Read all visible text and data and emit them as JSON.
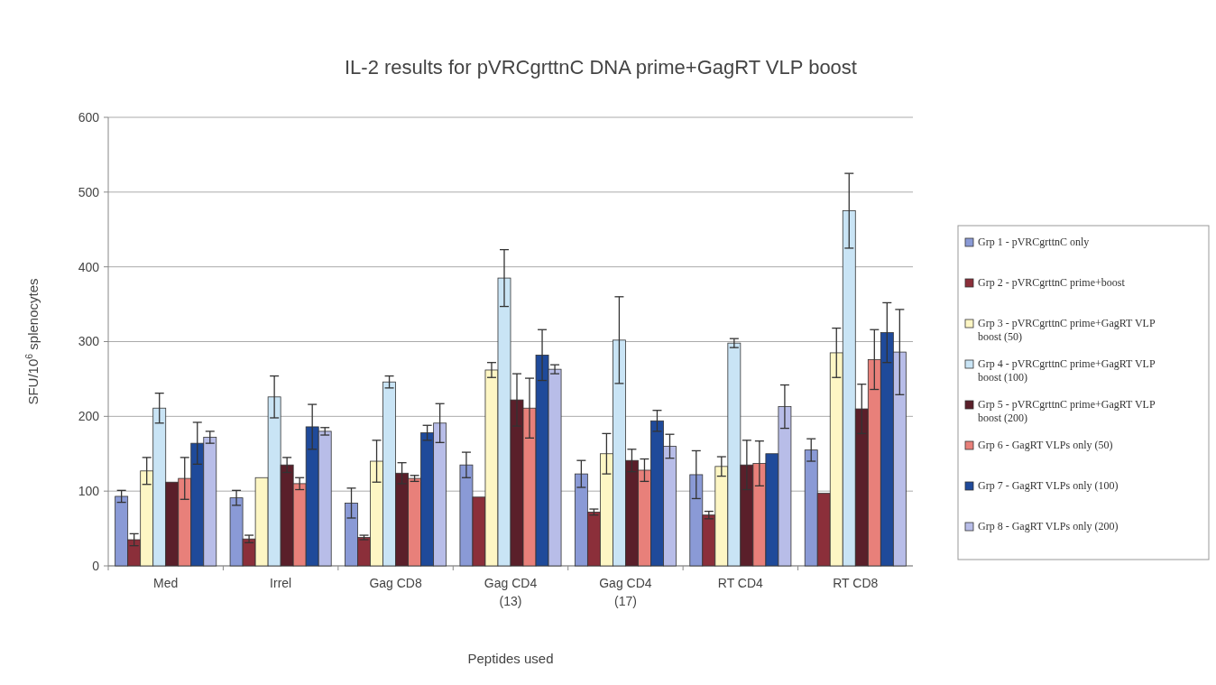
{
  "chart_data": {
    "type": "bar",
    "title": "IL-2 results for pVRCgrttnC DNA prime+GagRT VLP boost",
    "xlabel": "Peptides used",
    "ylabel": "SFU/10$^{6}$ splenocytes",
    "categories": [
      "Med",
      "Irrel",
      "Gag CD8",
      "Gag CD4 (13)",
      "Gag CD4 (17)",
      "RT CD4",
      "RT CD8"
    ],
    "ylim": [
      0,
      600
    ],
    "yticks": [
      0,
      100,
      200,
      300,
      400,
      500,
      600
    ],
    "grid": "y",
    "legend": "right",
    "series": [
      {
        "name": "Grp 1 - pVRCgrttnC only",
        "color": "#8a9ad6",
        "values": [
          93,
          91,
          84,
          135,
          123,
          122,
          155
        ],
        "errors": [
          8,
          10,
          20,
          17,
          18,
          32,
          15
        ]
      },
      {
        "name": "Grp 2 - pVRCgrttnC prime+boost",
        "color": "#8b2f3a",
        "values": [
          35,
          36,
          38,
          92,
          72,
          68,
          97
        ],
        "errors": [
          8,
          5,
          3,
          null,
          4,
          5,
          null
        ]
      },
      {
        "name": "Grp 3 - pVRCgrttnC prime+GagRT VLP boost (50)",
        "color": "#fdf6c4",
        "values": [
          127,
          118,
          140,
          262,
          150,
          133,
          285
        ],
        "errors": [
          18,
          null,
          28,
          10,
          27,
          13,
          33
        ]
      },
      {
        "name": "Grp 4 - pVRCgrttnC prime+GagRT VLP boost (100)",
        "color": "#c9e4f5",
        "values": [
          211,
          226,
          246,
          385,
          302,
          298,
          475
        ],
        "errors": [
          20,
          28,
          8,
          38,
          58,
          6,
          50
        ]
      },
      {
        "name": "Grp 5 - pVRCgrttnC prime+GagRT VLP boost (200)",
        "color": "#5a1f2a",
        "values": [
          112,
          135,
          124,
          222,
          141,
          135,
          210
        ],
        "errors": [
          null,
          10,
          14,
          35,
          15,
          33,
          33
        ]
      },
      {
        "name": "Grp 6 - GagRT VLPs only (50)",
        "color": "#e8807a",
        "values": [
          117,
          110,
          117,
          211,
          128,
          137,
          276
        ],
        "errors": [
          28,
          8,
          4,
          40,
          15,
          30,
          40
        ]
      },
      {
        "name": "Grp 7 - GagRT VLPs only (100)",
        "color": "#1f4a9a",
        "values": [
          164,
          186,
          178,
          282,
          194,
          150,
          312
        ],
        "errors": [
          28,
          30,
          10,
          34,
          14,
          null,
          40
        ]
      },
      {
        "name": "Grp 8 - GagRT VLPs only (200)",
        "color": "#b8bde8",
        "values": [
          172,
          180,
          191,
          263,
          160,
          213,
          286
        ],
        "errors": [
          8,
          5,
          26,
          6,
          16,
          29,
          57
        ]
      }
    ]
  }
}
